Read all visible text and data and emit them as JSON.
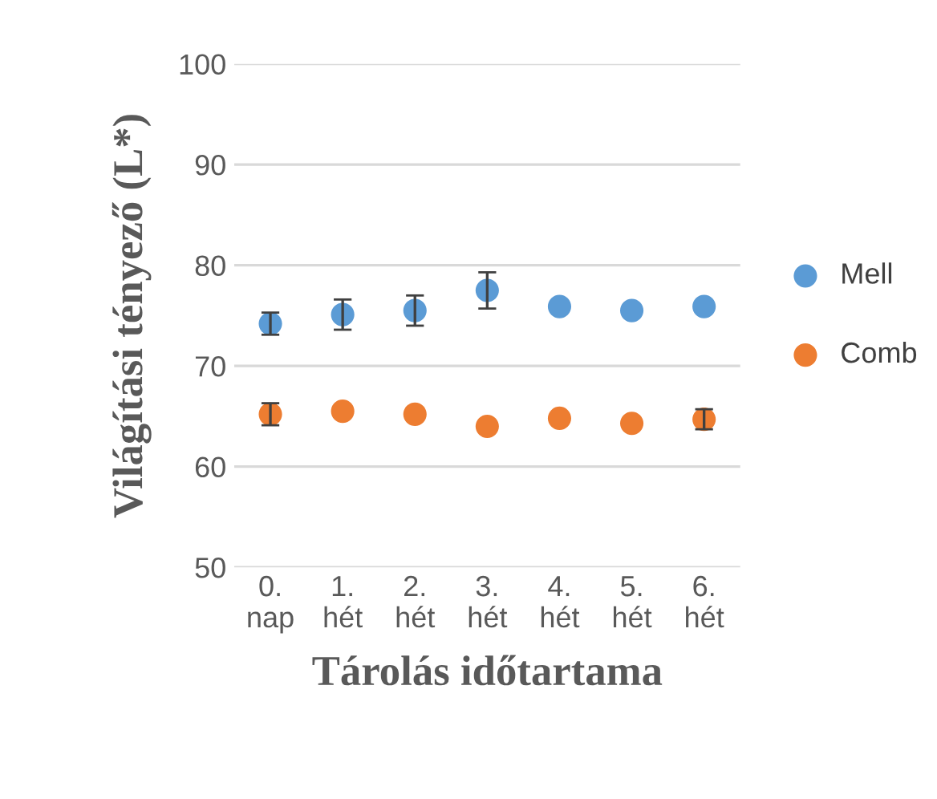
{
  "chart_data": {
    "type": "scatter",
    "xlabel": "Tárolás időtartama",
    "ylabel": "Világítási tényező (L*)",
    "categories": [
      "0.\nnap",
      "1.\nhét",
      "2.\nhét",
      "3.\nhét",
      "4.\nhét",
      "5.\nhét",
      "6.\nhét"
    ],
    "series": [
      {
        "name": "Mell",
        "color": "#5b9bd5",
        "values": [
          74.2,
          75.1,
          75.5,
          77.5,
          75.9,
          75.5,
          75.9
        ],
        "errors": [
          1.1,
          1.5,
          1.5,
          1.8,
          null,
          null,
          null
        ]
      },
      {
        "name": "Comb",
        "color": "#ed7d31",
        "values": [
          65.2,
          65.5,
          65.2,
          64.0,
          64.8,
          64.3,
          64.7
        ],
        "errors": [
          1.1,
          null,
          null,
          null,
          null,
          null,
          1.0
        ]
      }
    ],
    "ylim": [
      50,
      100
    ],
    "yticks": [
      50,
      60,
      70,
      80,
      90,
      100
    ],
    "grid": "y",
    "legend": "right",
    "marker": "circle"
  }
}
